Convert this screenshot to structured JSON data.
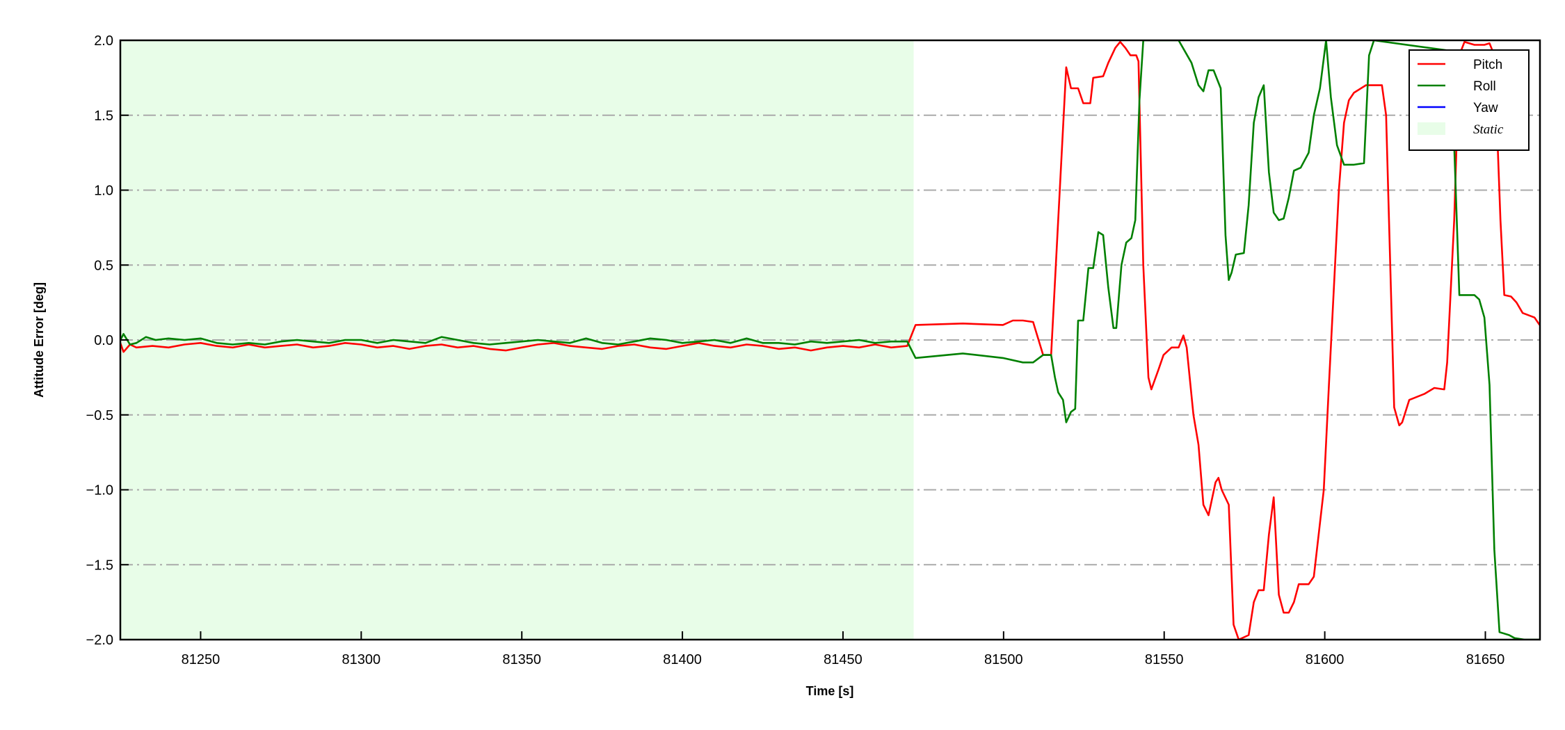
{
  "chart_data": {
    "type": "line",
    "xlabel": "Time [s]",
    "ylabel": "Attitude Error [deg]",
    "xlim": [
      81225,
      81667
    ],
    "ylim": [
      -2.0,
      2.0
    ],
    "xticks": [
      81250,
      81300,
      81350,
      81400,
      81450,
      81500,
      81550,
      81600,
      81650
    ],
    "xtick_labels": [
      "81250",
      "81300",
      "81350",
      "81400",
      "81450",
      "81500",
      "81550",
      "81600",
      "81650"
    ],
    "yticks": [
      -2.0,
      -1.5,
      -1.0,
      -0.5,
      0.0,
      0.5,
      1.0,
      1.5,
      2.0
    ],
    "ytick_labels": [
      "−2.0",
      "−1.5",
      "−1.0",
      "−0.5",
      "0.0",
      "0.5",
      "1.0",
      "1.5",
      "2.0"
    ],
    "grid": "horizontal dash-dot",
    "legend_position": "top-right",
    "shaded_regions": [
      {
        "name": "Static",
        "x": [
          81225,
          81472
        ],
        "color": "#e8fde8"
      }
    ],
    "series": [
      {
        "name": "Pitch",
        "color": "#ff0000",
        "points": [
          [
            81225,
            -0.02
          ],
          [
            81226,
            -0.08
          ],
          [
            81228,
            -0.03
          ],
          [
            81230,
            -0.05
          ],
          [
            81235,
            -0.04
          ],
          [
            81240,
            -0.05
          ],
          [
            81245,
            -0.03
          ],
          [
            81250,
            -0.02
          ],
          [
            81255,
            -0.04
          ],
          [
            81260,
            -0.05
          ],
          [
            81265,
            -0.03
          ],
          [
            81270,
            -0.05
          ],
          [
            81275,
            -0.04
          ],
          [
            81280,
            -0.03
          ],
          [
            81285,
            -0.05
          ],
          [
            81290,
            -0.04
          ],
          [
            81295,
            -0.02
          ],
          [
            81300,
            -0.03
          ],
          [
            81305,
            -0.05
          ],
          [
            81310,
            -0.04
          ],
          [
            81315,
            -0.06
          ],
          [
            81320,
            -0.04
          ],
          [
            81325,
            -0.03
          ],
          [
            81330,
            -0.05
          ],
          [
            81335,
            -0.04
          ],
          [
            81340,
            -0.06
          ],
          [
            81345,
            -0.07
          ],
          [
            81350,
            -0.05
          ],
          [
            81355,
            -0.03
          ],
          [
            81360,
            -0.02
          ],
          [
            81365,
            -0.04
          ],
          [
            81370,
            -0.05
          ],
          [
            81375,
            -0.06
          ],
          [
            81380,
            -0.04
          ],
          [
            81385,
            -0.03
          ],
          [
            81390,
            -0.05
          ],
          [
            81395,
            -0.06
          ],
          [
            81400,
            -0.04
          ],
          [
            81405,
            -0.02
          ],
          [
            81410,
            -0.04
          ],
          [
            81415,
            -0.05
          ],
          [
            81420,
            -0.03
          ],
          [
            81425,
            -0.04
          ],
          [
            81430,
            -0.06
          ],
          [
            81435,
            -0.05
          ],
          [
            81440,
            -0.07
          ],
          [
            81445,
            -0.05
          ],
          [
            81450,
            -0.04
          ],
          [
            81455,
            -0.05
          ],
          [
            81460,
            -0.03
          ],
          [
            81465,
            -0.05
          ],
          [
            81470,
            -0.04
          ],
          [
            81472.6,
            0.1
          ],
          [
            81487.3,
            0.11
          ],
          [
            81499.8,
            0.1
          ],
          [
            81502.9,
            0.13
          ],
          [
            81506,
            0.13
          ],
          [
            81509.2,
            0.12
          ],
          [
            81512.3,
            -0.1
          ],
          [
            81514.8,
            -0.1
          ],
          [
            81519.5,
            1.82
          ],
          [
            81521,
            1.68
          ],
          [
            81523.2,
            1.68
          ],
          [
            81524.8,
            1.58
          ],
          [
            81527,
            1.58
          ],
          [
            81527.9,
            1.75
          ],
          [
            81531,
            1.76
          ],
          [
            81532.6,
            1.85
          ],
          [
            81534.8,
            1.95
          ],
          [
            81536.3,
            1.99
          ],
          [
            81537.9,
            1.95
          ],
          [
            81539.5,
            1.9
          ],
          [
            81541.3,
            1.9
          ],
          [
            81542,
            1.86
          ],
          [
            81543.5,
            0.5
          ],
          [
            81545.1,
            -0.25
          ],
          [
            81546,
            -0.33
          ],
          [
            81548.2,
            -0.2
          ],
          [
            81549.8,
            -0.1
          ],
          [
            81552.3,
            -0.05
          ],
          [
            81554.5,
            -0.05
          ],
          [
            81556,
            0.03
          ],
          [
            81557,
            -0.05
          ],
          [
            81559.1,
            -0.5
          ],
          [
            81560.7,
            -0.7
          ],
          [
            81562.2,
            -1.1
          ],
          [
            81563.8,
            -1.17
          ],
          [
            81566,
            -0.95
          ],
          [
            81566.9,
            -0.92
          ],
          [
            81567.9,
            -1.0
          ],
          [
            81570.1,
            -1.1
          ],
          [
            81571.6,
            -1.9
          ],
          [
            81573.2,
            -2.0
          ],
          [
            81576.3,
            -1.97
          ],
          [
            81577.9,
            -1.75
          ],
          [
            81579.4,
            -1.67
          ],
          [
            81581,
            -1.67
          ],
          [
            81582.6,
            -1.3
          ],
          [
            81584.1,
            -1.05
          ],
          [
            81585.7,
            -1.7
          ],
          [
            81587.2,
            -1.82
          ],
          [
            81588.8,
            -1.82
          ],
          [
            81590.4,
            -1.75
          ],
          [
            81591.9,
            -1.63
          ],
          [
            81595,
            -1.63
          ],
          [
            81596.6,
            -1.58
          ],
          [
            81599.7,
            -1.0
          ],
          [
            81601.3,
            -0.3
          ],
          [
            81604.4,
            1.0
          ],
          [
            81606,
            1.45
          ],
          [
            81607.5,
            1.6
          ],
          [
            81609.1,
            1.65
          ],
          [
            81612.8,
            1.7
          ],
          [
            81617.8,
            1.7
          ],
          [
            81619.1,
            1.5
          ],
          [
            81621.6,
            -0.45
          ],
          [
            81623.2,
            -0.57
          ],
          [
            81624.1,
            -0.55
          ],
          [
            81626.3,
            -0.4
          ],
          [
            81631,
            -0.36
          ],
          [
            81634.1,
            -0.32
          ],
          [
            81637.2,
            -0.33
          ],
          [
            81638.1,
            -0.15
          ],
          [
            81640.3,
            0.8
          ],
          [
            81641.9,
            1.9
          ],
          [
            81643.5,
            1.99
          ],
          [
            81646.6,
            1.97
          ],
          [
            81649.7,
            1.97
          ],
          [
            81651.3,
            1.98
          ],
          [
            81652.8,
            1.9
          ],
          [
            81654.7,
            0.8
          ],
          [
            81655.9,
            0.3
          ],
          [
            81658,
            0.29
          ],
          [
            81659.7,
            0.25
          ],
          [
            81661.6,
            0.18
          ],
          [
            81665.3,
            0.15
          ],
          [
            81666.9,
            0.1
          ]
        ]
      },
      {
        "name": "Roll",
        "color": "#008000",
        "points": [
          [
            81225,
            0.0
          ],
          [
            81226,
            0.04
          ],
          [
            81228,
            -0.03
          ],
          [
            81230,
            -0.02
          ],
          [
            81233,
            0.02
          ],
          [
            81236,
            0.0
          ],
          [
            81240,
            0.01
          ],
          [
            81245,
            0.0
          ],
          [
            81250,
            0.01
          ],
          [
            81255,
            -0.02
          ],
          [
            81260,
            -0.03
          ],
          [
            81265,
            -0.02
          ],
          [
            81270,
            -0.03
          ],
          [
            81275,
            -0.01
          ],
          [
            81280,
            0.0
          ],
          [
            81285,
            -0.01
          ],
          [
            81290,
            -0.02
          ],
          [
            81295,
            0.0
          ],
          [
            81300,
            0.0
          ],
          [
            81305,
            -0.02
          ],
          [
            81310,
            0.0
          ],
          [
            81315,
            -0.01
          ],
          [
            81320,
            -0.02
          ],
          [
            81325,
            0.02
          ],
          [
            81330,
            0.0
          ],
          [
            81335,
            -0.02
          ],
          [
            81340,
            -0.03
          ],
          [
            81345,
            -0.02
          ],
          [
            81350,
            -0.01
          ],
          [
            81355,
            0.0
          ],
          [
            81360,
            -0.01
          ],
          [
            81365,
            -0.02
          ],
          [
            81370,
            0.01
          ],
          [
            81375,
            -0.02
          ],
          [
            81380,
            -0.03
          ],
          [
            81385,
            -0.01
          ],
          [
            81390,
            0.01
          ],
          [
            81395,
            0.0
          ],
          [
            81400,
            -0.02
          ],
          [
            81405,
            -0.01
          ],
          [
            81410,
            0.0
          ],
          [
            81415,
            -0.02
          ],
          [
            81420,
            0.01
          ],
          [
            81425,
            -0.02
          ],
          [
            81430,
            -0.02
          ],
          [
            81435,
            -0.03
          ],
          [
            81440,
            -0.01
          ],
          [
            81445,
            -0.02
          ],
          [
            81450,
            -0.01
          ],
          [
            81455,
            0.0
          ],
          [
            81460,
            -0.02
          ],
          [
            81465,
            -0.01
          ],
          [
            81470,
            -0.01
          ],
          [
            81472.6,
            -0.12
          ],
          [
            81487.3,
            -0.09
          ],
          [
            81499.8,
            -0.12
          ],
          [
            81506,
            -0.15
          ],
          [
            81509.2,
            -0.15
          ],
          [
            81512.3,
            -0.1
          ],
          [
            81514.8,
            -0.1
          ],
          [
            81516,
            -0.25
          ],
          [
            81517,
            -0.35
          ],
          [
            81518.5,
            -0.4
          ],
          [
            81519.5,
            -0.55
          ],
          [
            81521,
            -0.48
          ],
          [
            81522.3,
            -0.46
          ],
          [
            81523.2,
            0.13
          ],
          [
            81524.8,
            0.13
          ],
          [
            81526.4,
            0.48
          ],
          [
            81527.9,
            0.48
          ],
          [
            81529.5,
            0.72
          ],
          [
            81531,
            0.7
          ],
          [
            81532.6,
            0.35
          ],
          [
            81534.2,
            0.08
          ],
          [
            81535.1,
            0.08
          ],
          [
            81536.7,
            0.5
          ],
          [
            81538.2,
            0.65
          ],
          [
            81539.8,
            0.68
          ],
          [
            81541,
            0.8
          ],
          [
            81542.3,
            1.6
          ],
          [
            81543.5,
            2.0
          ],
          [
            81554.5,
            2.0
          ],
          [
            81558.5,
            1.85
          ],
          [
            81560.7,
            1.7
          ],
          [
            81562.2,
            1.66
          ],
          [
            81563.8,
            1.8
          ],
          [
            81565.4,
            1.8
          ],
          [
            81567.6,
            1.68
          ],
          [
            81569.1,
            0.7
          ],
          [
            81570.1,
            0.4
          ],
          [
            81571,
            0.45
          ],
          [
            81572.3,
            0.57
          ],
          [
            81574.8,
            0.58
          ],
          [
            81576.3,
            0.9
          ],
          [
            81577.9,
            1.45
          ],
          [
            81579.4,
            1.62
          ],
          [
            81581,
            1.7
          ],
          [
            81582.6,
            1.12
          ],
          [
            81584.1,
            0.85
          ],
          [
            81585.7,
            0.8
          ],
          [
            81587.2,
            0.81
          ],
          [
            81588.8,
            0.95
          ],
          [
            81590.4,
            1.13
          ],
          [
            81592.5,
            1.15
          ],
          [
            81595,
            1.25
          ],
          [
            81596.6,
            1.5
          ],
          [
            81598.5,
            1.68
          ],
          [
            81600.4,
            2.0
          ],
          [
            81601.9,
            1.62
          ],
          [
            81603.8,
            1.3
          ],
          [
            81606,
            1.17
          ],
          [
            81609.1,
            1.17
          ],
          [
            81612.2,
            1.18
          ],
          [
            81613.8,
            1.9
          ],
          [
            81615.3,
            2.0
          ],
          [
            81639.1,
            1.93
          ],
          [
            81640.3,
            1.3
          ],
          [
            81641.9,
            0.3
          ],
          [
            81646.6,
            0.3
          ],
          [
            81648.1,
            0.27
          ],
          [
            81649.7,
            0.15
          ],
          [
            81651.3,
            -0.3
          ],
          [
            81652.8,
            -1.4
          ],
          [
            81654.4,
            -1.95
          ],
          [
            81657.4,
            -1.97
          ],
          [
            81659.1,
            -1.99
          ],
          [
            81662.2,
            -2.0
          ],
          [
            81666.9,
            -2.0
          ]
        ]
      },
      {
        "name": "Yaw",
        "color": "#0000ff",
        "points": []
      }
    ],
    "legend": [
      {
        "label": "Pitch",
        "color": "#ff0000",
        "kind": "line"
      },
      {
        "label": "Roll",
        "color": "#008000",
        "kind": "line"
      },
      {
        "label": "Yaw",
        "color": "#0000ff",
        "kind": "line"
      },
      {
        "label": "Static",
        "color": "#e8fde8",
        "kind": "patch"
      }
    ]
  }
}
